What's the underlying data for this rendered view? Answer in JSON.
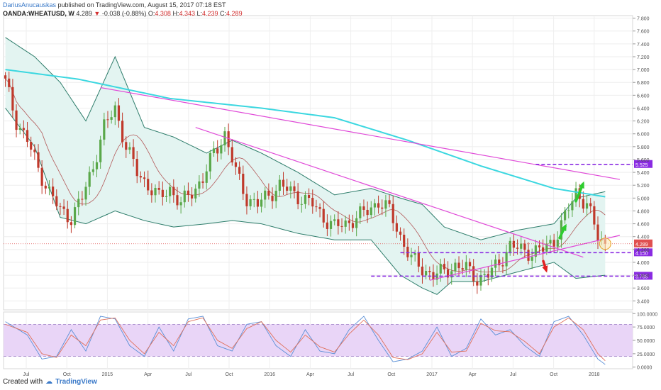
{
  "header": {
    "author": "DariusAnucauskas",
    "published": " published on TradingView.com, August 15, 2017 07:18 EST",
    "symbol": "OANDA:WHEATUSD, W",
    "last": "4.289",
    "change": "-0.038 (-0.88%)",
    "o_label": "O:",
    "o_val": "4.308",
    "h_label": "H:",
    "h_val": "4.343",
    "l_label": "L:",
    "l_val": "4.239",
    "c_label": "C:",
    "c_val": "4.289"
  },
  "footer": {
    "created": "Created with",
    "brand": "TradingView"
  },
  "colors": {
    "up": "#5aa84a",
    "down": "#c0392b",
    "bb": "#2e7d6b",
    "bbfill": "#e3f4f1",
    "sma": "#3bd7e0",
    "trend": "#e04ad8",
    "level": "#8a2be2",
    "basis": "#b35a5a",
    "stochk": "#5a8fd6",
    "stochd": "#e0705a",
    "stochfill": "#e9d5f7",
    "arrowUp": "#2ecc2e",
    "arrowDown": "#e02020"
  },
  "chart_data": [
    {
      "type": "candlestick",
      "x_ticks": [
        "Jul",
        "Oct",
        "2015",
        "Apr",
        "Jul",
        "Oct",
        "2016",
        "Apr",
        "Jul",
        "Oct",
        "2017",
        "Apr",
        "Jul",
        "Oct",
        "2018"
      ],
      "y_ticks": [
        "7.800",
        "7.600",
        "7.400",
        "7.200",
        "7.000",
        "6.800",
        "6.600",
        "6.400",
        "6.200",
        "6.000",
        "5.800",
        "5.600",
        "5.400",
        "5.200",
        "5.000",
        "4.800",
        "4.600",
        "4.400",
        "4.200",
        "4.000",
        "3.800",
        "3.600",
        "3.400"
      ],
      "ylim": [
        3.26,
        7.84
      ],
      "series_points": [
        [
          0,
          6.8
        ],
        [
          3,
          6.2
        ],
        [
          6,
          5.9
        ],
        [
          9,
          5.45
        ],
        [
          12,
          5.1
        ],
        [
          15,
          4.8
        ],
        [
          18,
          4.7
        ],
        [
          21,
          5.0
        ],
        [
          24,
          5.5
        ],
        [
          27,
          6.1
        ],
        [
          30,
          6.4
        ],
        [
          33,
          5.8
        ],
        [
          36,
          5.4
        ],
        [
          39,
          5.2
        ],
        [
          42,
          5.0
        ],
        [
          45,
          5.15
        ],
        [
          48,
          4.9
        ],
        [
          51,
          5.1
        ],
        [
          54,
          5.3
        ],
        [
          57,
          5.7
        ],
        [
          60,
          6.0
        ],
        [
          63,
          5.4
        ],
        [
          66,
          5.0
        ],
        [
          69,
          4.9
        ],
        [
          72,
          5.05
        ],
        [
          75,
          5.2
        ],
        [
          78,
          5.1
        ],
        [
          81,
          5.0
        ],
        [
          84,
          4.9
        ],
        [
          87,
          4.7
        ],
        [
          90,
          4.55
        ],
        [
          93,
          4.6
        ],
        [
          96,
          4.7
        ],
        [
          99,
          4.8
        ],
        [
          102,
          4.95
        ],
        [
          105,
          4.8
        ],
        [
          108,
          4.4
        ],
        [
          111,
          4.05
        ],
        [
          114,
          3.9
        ],
        [
          117,
          3.8
        ],
        [
          120,
          3.85
        ],
        [
          123,
          3.95
        ],
        [
          126,
          3.9
        ],
        [
          129,
          3.75
        ],
        [
          132,
          3.8
        ],
        [
          135,
          4.0
        ],
        [
          138,
          4.25
        ],
        [
          141,
          4.2
        ],
        [
          144,
          4.15
        ],
        [
          147,
          4.2
        ],
        [
          150,
          4.35
        ],
        [
          153,
          4.7
        ],
        [
          156,
          5.1
        ],
        [
          159,
          4.9
        ],
        [
          162,
          4.4
        ],
        [
          164,
          4.289
        ]
      ],
      "sma_points": [
        [
          0,
          7.0
        ],
        [
          20,
          6.85
        ],
        [
          45,
          6.55
        ],
        [
          70,
          6.4
        ],
        [
          90,
          6.25
        ],
        [
          110,
          5.9
        ],
        [
          130,
          5.5
        ],
        [
          150,
          5.15
        ],
        [
          164,
          5.02
        ]
      ],
      "bb_upper_points": [
        [
          0,
          7.5
        ],
        [
          8,
          7.2
        ],
        [
          15,
          6.8
        ],
        [
          22,
          6.2
        ],
        [
          30,
          7.2
        ],
        [
          38,
          6.1
        ],
        [
          46,
          5.95
        ],
        [
          55,
          5.7
        ],
        [
          62,
          5.9
        ],
        [
          70,
          5.7
        ],
        [
          80,
          5.4
        ],
        [
          90,
          5.05
        ],
        [
          100,
          5.15
        ],
        [
          108,
          5.0
        ],
        [
          114,
          4.9
        ],
        [
          120,
          4.55
        ],
        [
          130,
          4.35
        ],
        [
          140,
          4.5
        ],
        [
          150,
          4.6
        ],
        [
          156,
          5.0
        ],
        [
          164,
          5.1
        ]
      ],
      "bb_lower_points": [
        [
          0,
          6.4
        ],
        [
          8,
          5.8
        ],
        [
          15,
          4.7
        ],
        [
          22,
          4.6
        ],
        [
          30,
          4.8
        ],
        [
          38,
          4.65
        ],
        [
          46,
          4.55
        ],
        [
          55,
          4.6
        ],
        [
          62,
          4.65
        ],
        [
          70,
          4.6
        ],
        [
          80,
          4.45
        ],
        [
          90,
          4.35
        ],
        [
          100,
          4.35
        ],
        [
          108,
          3.8
        ],
        [
          114,
          3.6
        ],
        [
          118,
          3.5
        ],
        [
          122,
          3.7
        ],
        [
          130,
          3.7
        ],
        [
          140,
          3.85
        ],
        [
          150,
          4.0
        ],
        [
          156,
          3.75
        ],
        [
          164,
          3.8
        ]
      ],
      "trendlines": [
        {
          "p1": [
            26,
            6.72
          ],
          "p2": [
            168,
            5.29
          ]
        },
        {
          "p1": [
            52,
            6.1
          ],
          "p2": [
            158,
            4.08
          ]
        },
        {
          "p1": [
            116,
            3.72
          ],
          "p2": [
            168,
            4.42
          ]
        }
      ],
      "levels": [
        {
          "value": 5.525,
          "label": "5.525",
          "from": 145
        },
        {
          "value": 4.15,
          "label": "4.150",
          "from": 108
        },
        {
          "value": 3.785,
          "label": "3.785",
          "from": 100
        }
      ],
      "last_price": {
        "value": 4.289,
        "label": "4.289"
      }
    },
    {
      "type": "line",
      "y_ticks": [
        "100.0000",
        "75.0000",
        "50.0000",
        "25.0000",
        "0.0000"
      ],
      "ylim": [
        -3,
        103
      ],
      "bands": [
        20,
        80
      ],
      "stoch_k_points": [
        [
          0,
          85
        ],
        [
          6,
          60
        ],
        [
          10,
          15
        ],
        [
          14,
          20
        ],
        [
          18,
          70
        ],
        [
          22,
          30
        ],
        [
          26,
          95
        ],
        [
          30,
          90
        ],
        [
          34,
          40
        ],
        [
          38,
          20
        ],
        [
          42,
          75
        ],
        [
          46,
          30
        ],
        [
          50,
          90
        ],
        [
          54,
          95
        ],
        [
          58,
          40
        ],
        [
          62,
          30
        ],
        [
          66,
          80
        ],
        [
          70,
          85
        ],
        [
          74,
          40
        ],
        [
          78,
          20
        ],
        [
          82,
          70
        ],
        [
          86,
          30
        ],
        [
          90,
          25
        ],
        [
          94,
          70
        ],
        [
          98,
          95
        ],
        [
          102,
          50
        ],
        [
          106,
          10
        ],
        [
          110,
          15
        ],
        [
          114,
          30
        ],
        [
          118,
          75
        ],
        [
          122,
          20
        ],
        [
          126,
          35
        ],
        [
          130,
          90
        ],
        [
          134,
          60
        ],
        [
          138,
          70
        ],
        [
          142,
          40
        ],
        [
          146,
          20
        ],
        [
          150,
          85
        ],
        [
          154,
          95
        ],
        [
          158,
          60
        ],
        [
          162,
          15
        ],
        [
          164,
          5
        ]
      ],
      "stoch_d_points": [
        [
          0,
          80
        ],
        [
          6,
          65
        ],
        [
          10,
          25
        ],
        [
          14,
          18
        ],
        [
          18,
          60
        ],
        [
          22,
          40
        ],
        [
          26,
          88
        ],
        [
          30,
          92
        ],
        [
          34,
          50
        ],
        [
          38,
          25
        ],
        [
          42,
          65
        ],
        [
          46,
          40
        ],
        [
          50,
          85
        ],
        [
          54,
          92
        ],
        [
          58,
          50
        ],
        [
          62,
          35
        ],
        [
          66,
          72
        ],
        [
          70,
          85
        ],
        [
          74,
          50
        ],
        [
          78,
          28
        ],
        [
          82,
          60
        ],
        [
          86,
          38
        ],
        [
          90,
          28
        ],
        [
          94,
          62
        ],
        [
          98,
          88
        ],
        [
          102,
          60
        ],
        [
          106,
          18
        ],
        [
          110,
          14
        ],
        [
          114,
          25
        ],
        [
          118,
          65
        ],
        [
          122,
          28
        ],
        [
          126,
          30
        ],
        [
          130,
          82
        ],
        [
          134,
          68
        ],
        [
          138,
          66
        ],
        [
          142,
          48
        ],
        [
          146,
          25
        ],
        [
          150,
          75
        ],
        [
          154,
          92
        ],
        [
          158,
          70
        ],
        [
          162,
          25
        ],
        [
          164,
          12
        ]
      ]
    }
  ]
}
